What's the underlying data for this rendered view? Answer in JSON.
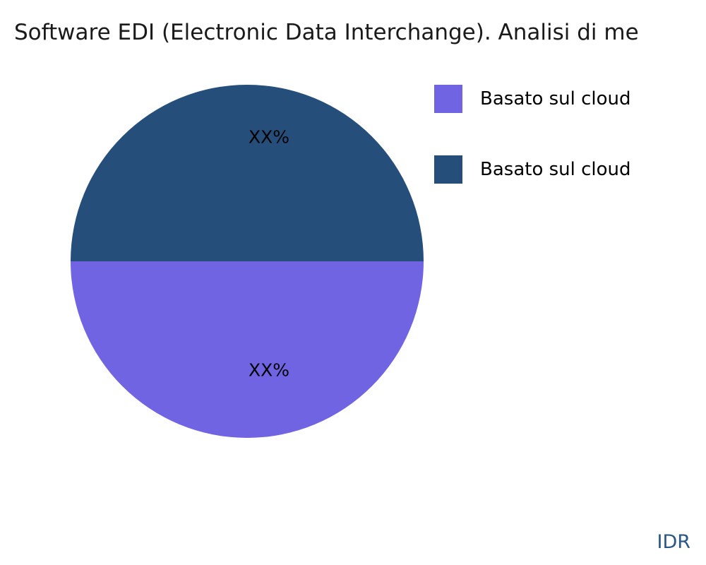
{
  "title": "Software EDI (Electronic Data Interchange). Analisi di me",
  "chart_data": {
    "type": "pie",
    "title": "Software EDI (Electronic Data Interchange). Analisi di me",
    "slices": [
      {
        "label": "Basato sul cloud",
        "value": 50,
        "color": "#7164e2",
        "data_label": "XX%",
        "position": "bottom"
      },
      {
        "label": "Basato sul cloud",
        "value": 50,
        "color": "#254e7a",
        "data_label": "XX%",
        "position": "top"
      }
    ],
    "legend": {
      "position": "right",
      "items": [
        {
          "label": "Basato sul cloud",
          "color": "#7164e2"
        },
        {
          "label": "Basato sul cloud",
          "color": "#254e7a"
        }
      ]
    },
    "watermark": "IDR",
    "watermark_color": "#2a5783"
  }
}
